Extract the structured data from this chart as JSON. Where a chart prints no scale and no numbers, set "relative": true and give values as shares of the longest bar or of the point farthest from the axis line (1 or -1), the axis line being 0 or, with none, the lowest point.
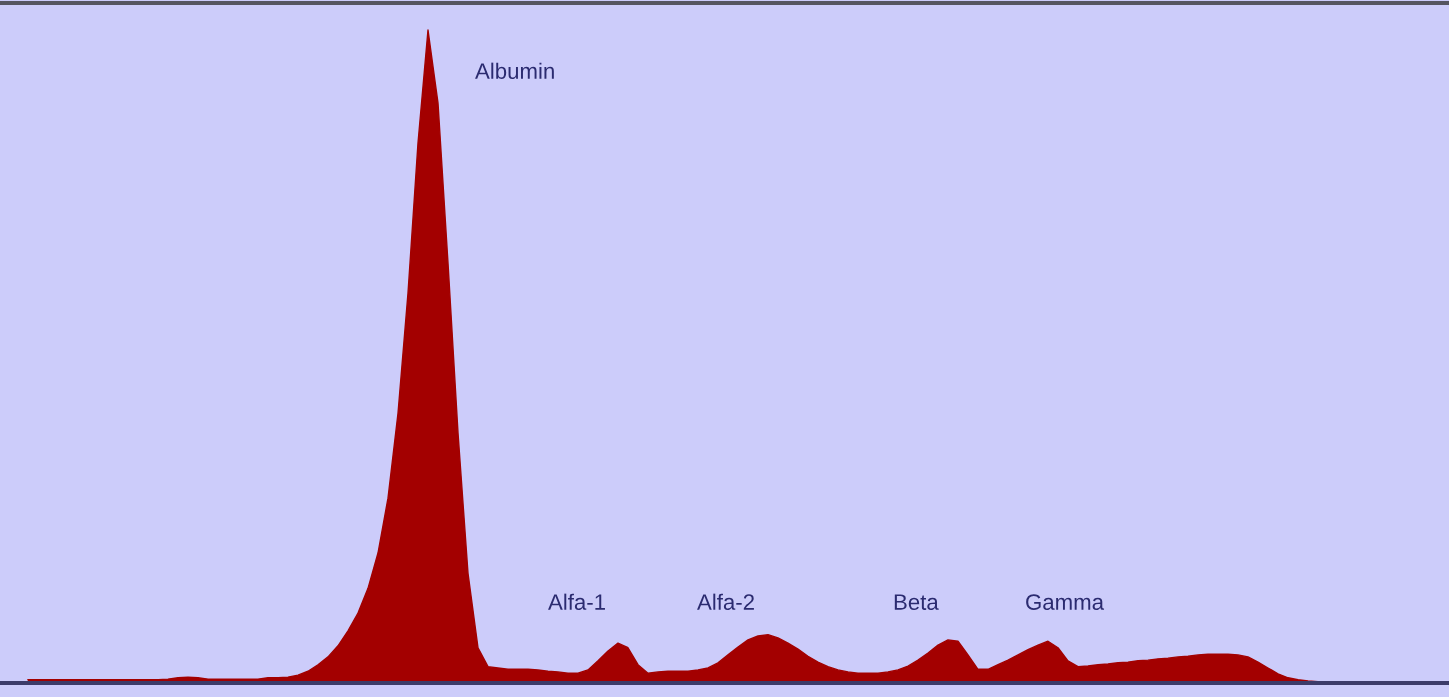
{
  "chart_data": {
    "type": "area",
    "relative": true,
    "color": "#a30000",
    "categories": [
      null,
      null,
      null,
      null,
      null,
      null,
      null,
      null,
      null,
      null,
      null,
      null,
      null,
      null,
      null,
      null,
      null,
      null,
      null,
      null,
      null,
      null,
      null,
      null,
      null,
      null,
      null,
      null,
      null,
      null,
      null,
      null,
      null,
      null,
      null,
      null,
      null,
      null,
      null,
      null,
      null,
      null,
      null,
      null,
      null,
      null,
      null,
      null,
      null,
      null,
      null,
      null,
      null,
      null,
      null,
      null,
      null,
      null,
      null,
      null,
      null,
      null,
      null,
      null,
      null,
      null,
      null,
      null,
      null,
      null,
      null,
      null,
      null,
      null,
      null,
      null,
      null,
      null,
      null,
      null,
      null,
      null,
      null,
      null,
      null,
      null,
      null,
      null,
      null,
      null,
      null,
      null,
      null,
      null,
      null,
      null,
      null,
      null,
      null,
      null,
      null,
      null,
      null,
      null,
      null,
      null,
      null,
      null,
      null,
      null,
      null,
      null,
      null,
      null,
      null,
      null,
      null,
      null,
      null,
      null,
      null,
      null,
      null,
      null,
      null,
      null,
      null,
      null,
      null,
      null,
      null,
      null,
      null,
      null,
      null,
      null,
      null,
      null,
      null,
      null,
      null
    ],
    "values": [
      0.005,
      0.005,
      0.005,
      0.005,
      0.005,
      0.005,
      0.005,
      0.005,
      0.005,
      0.005,
      0.005,
      0.005,
      0.005,
      0.005,
      0.006,
      0.008,
      0.009,
      0.008,
      0.006,
      0.006,
      0.006,
      0.006,
      0.006,
      0.006,
      0.008,
      0.008,
      0.009,
      0.012,
      0.018,
      0.028,
      0.04,
      0.057,
      0.08,
      0.107,
      0.145,
      0.199,
      0.283,
      0.413,
      0.597,
      0.827,
      1,
      0.888,
      0.643,
      0.383,
      0.168,
      0.054,
      0.025,
      0.023,
      0.021,
      0.021,
      0.021,
      0.02,
      0.018,
      0.017,
      0.015,
      0.015,
      0.02,
      0.034,
      0.049,
      0.061,
      0.054,
      0.028,
      0.015,
      0.017,
      0.018,
      0.018,
      0.018,
      0.02,
      0.023,
      0.031,
      0.043,
      0.055,
      0.066,
      0.072,
      0.074,
      0.069,
      0.061,
      0.052,
      0.041,
      0.032,
      0.025,
      0.02,
      0.017,
      0.015,
      0.015,
      0.015,
      0.017,
      0.02,
      0.026,
      0.035,
      0.046,
      0.058,
      0.066,
      0.064,
      0.043,
      0.021,
      0.021,
      0.028,
      0.035,
      0.043,
      0.051,
      0.058,
      0.064,
      0.054,
      0.034,
      0.025,
      0.026,
      0.028,
      0.029,
      0.031,
      0.032,
      0.034,
      0.035,
      0.037,
      0.038,
      0.04,
      0.041,
      0.043,
      0.044,
      0.044,
      0.044,
      0.043,
      0.04,
      0.032,
      0.023,
      0.014,
      0.008,
      0.005,
      0.003,
      0.002,
      0,
      0,
      0,
      0,
      0,
      0,
      0,
      0,
      0,
      0,
      0
    ],
    "annotations": [
      "Albumin",
      "Alfa-1",
      "Alfa-2",
      "Beta",
      "Gamma"
    ],
    "grid": false,
    "legend": false
  }
}
